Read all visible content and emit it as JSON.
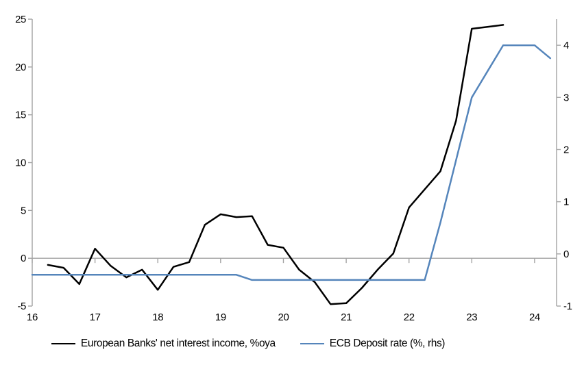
{
  "chart_data": {
    "type": "line",
    "title": "",
    "x_axis": {
      "ticks": [
        16,
        17,
        18,
        19,
        20,
        21,
        22,
        23,
        24
      ],
      "range": [
        16,
        24.35
      ]
    },
    "left_axis": {
      "ticks": [
        -5,
        0,
        5,
        10,
        15,
        20,
        25
      ],
      "range": [
        -5,
        25
      ]
    },
    "right_axis": {
      "ticks": [
        -1,
        0,
        1,
        2,
        3,
        4
      ],
      "range": [
        -1,
        4.5
      ]
    },
    "grid": "zero-line-only",
    "legend_position": "bottom",
    "series": [
      {
        "id": "banks-nii",
        "name": "European Banks' net interest income, %oya",
        "color": "#000000",
        "axis": "left",
        "x": [
          16.25,
          16.5,
          16.75,
          17.0,
          17.25,
          17.5,
          17.75,
          18.0,
          18.25,
          18.5,
          18.75,
          19.0,
          19.25,
          19.5,
          19.75,
          20.0,
          20.25,
          20.5,
          20.75,
          21.0,
          21.25,
          21.5,
          21.75,
          22.0,
          22.25,
          22.5,
          22.75,
          23.0,
          23.25,
          23.5
        ],
        "values": [
          -0.7,
          -1.0,
          -2.7,
          1.0,
          -0.8,
          -2.0,
          -1.2,
          -3.3,
          -0.9,
          -0.4,
          3.5,
          4.6,
          4.3,
          4.4,
          1.4,
          1.1,
          -1.2,
          -2.5,
          -4.8,
          -4.7,
          -3.1,
          -1.2,
          0.5,
          5.3,
          7.2,
          9.1,
          14.4,
          24.0,
          24.2,
          24.4
        ]
      },
      {
        "id": "ecb-deposit-rate",
        "name": "ECB Deposit rate (%, rhs)",
        "color": "#5585bb",
        "axis": "right",
        "x": [
          16.0,
          16.25,
          16.5,
          16.75,
          17.0,
          17.25,
          17.5,
          17.75,
          18.0,
          18.25,
          18.5,
          18.75,
          19.0,
          19.25,
          19.5,
          19.75,
          20.0,
          20.25,
          20.5,
          20.75,
          21.0,
          21.25,
          21.5,
          21.75,
          22.0,
          22.25,
          22.5,
          22.75,
          23.0,
          23.25,
          23.5,
          23.75,
          24.0,
          24.25
        ],
        "values": [
          -0.4,
          -0.4,
          -0.4,
          -0.4,
          -0.4,
          -0.4,
          -0.4,
          -0.4,
          -0.4,
          -0.4,
          -0.4,
          -0.4,
          -0.4,
          -0.4,
          -0.5,
          -0.5,
          -0.5,
          -0.5,
          -0.5,
          -0.5,
          -0.5,
          -0.5,
          -0.5,
          -0.5,
          -0.5,
          -0.5,
          0.6,
          1.8,
          3.0,
          3.5,
          4.0,
          4.0,
          4.0,
          3.75
        ]
      }
    ],
    "colors": {
      "axis": "#a3a3a3",
      "gridline": "#a3a3a3",
      "text": "#000000",
      "background": "#ffffff"
    }
  }
}
